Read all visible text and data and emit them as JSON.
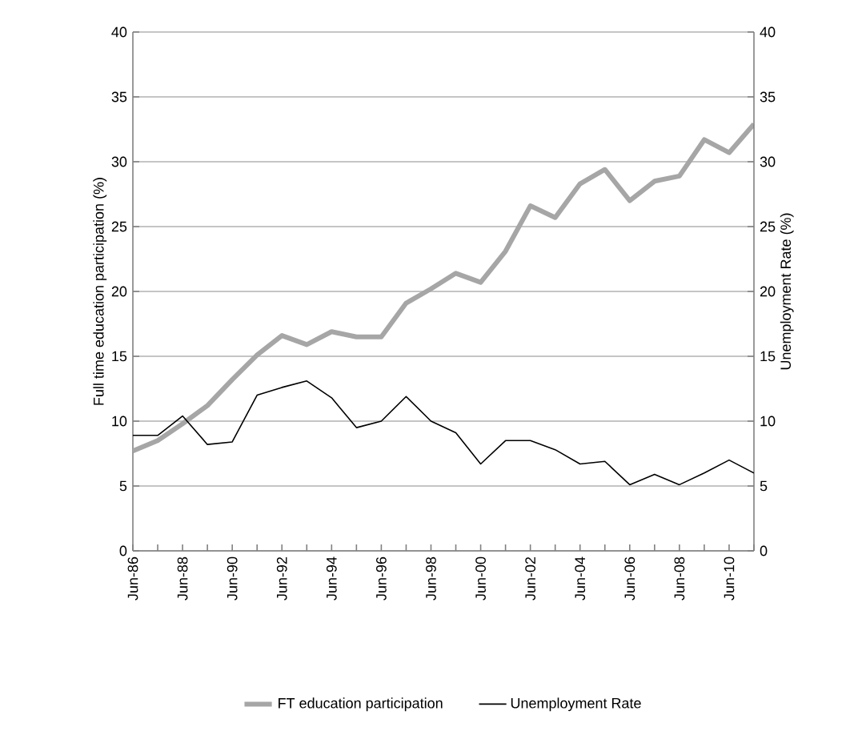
{
  "chart_data": {
    "type": "line",
    "categories": [
      "Jun-86",
      null,
      "Jun-88",
      null,
      "Jun-90",
      null,
      "Jun-92",
      null,
      "Jun-94",
      null,
      "Jun-96",
      null,
      "Jun-98",
      null,
      "Jun-00",
      null,
      "Jun-02",
      null,
      "Jun-04",
      null,
      "Jun-06",
      null,
      "Jun-08",
      null,
      "Jun-10",
      null
    ],
    "series": [
      {
        "name": "FT education participation",
        "color": "#a6a6a6",
        "values": [
          7.7,
          8.5,
          9.8,
          11.2,
          13.2,
          15.1,
          16.6,
          15.9,
          16.9,
          16.5,
          16.5,
          19.1,
          20.2,
          21.4,
          20.7,
          23.1,
          26.6,
          25.7,
          28.3,
          29.4,
          27.0,
          28.5,
          28.9,
          31.7,
          30.7,
          32.9
        ]
      },
      {
        "name": "Unemployment Rate",
        "color": "#000000",
        "axis": "y2",
        "values": [
          8.9,
          8.9,
          10.4,
          8.2,
          8.4,
          12.0,
          12.6,
          13.1,
          11.8,
          9.5,
          10.0,
          11.9,
          10.0,
          9.1,
          6.7,
          8.5,
          8.5,
          7.8,
          6.7,
          6.9,
          5.1,
          5.9,
          5.1,
          6.0,
          7.0,
          6.0
        ]
      }
    ],
    "ylabel": "Full time education participation (%)",
    "y2label": "Unemployment Rate (%)",
    "ylim": [
      0,
      40
    ],
    "yticks": [
      0,
      5,
      10,
      15,
      20,
      25,
      30,
      35,
      40
    ],
    "y2lim": [
      0,
      40
    ],
    "y2ticks": [
      0,
      5,
      10,
      15,
      20,
      25,
      30,
      35,
      40
    ],
    "grid": "y",
    "legend": "bottom"
  }
}
